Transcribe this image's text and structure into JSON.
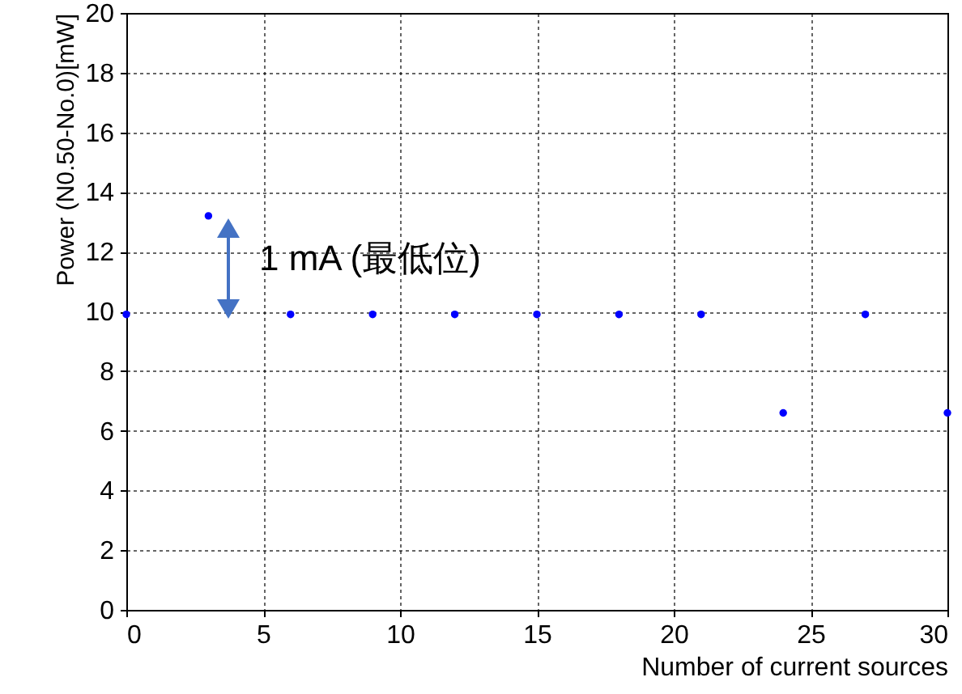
{
  "chart_data": {
    "type": "scatter",
    "xlabel": "Number of current sources",
    "ylabel": "Power (N0.50-No.0)[mW]",
    "x": [
      0,
      3,
      6,
      9,
      12,
      15,
      18,
      21,
      24,
      27,
      30
    ],
    "values": [
      9.9,
      13.2,
      9.9,
      9.9,
      9.9,
      9.9,
      9.9,
      9.9,
      6.6,
      9.9,
      6.6
    ],
    "color": "#0000ff",
    "marker": "circle",
    "grid": true,
    "xlim": [
      0,
      30
    ],
    "xticks": [
      0,
      5,
      10,
      15,
      20,
      25,
      30
    ],
    "ylim": [
      0,
      20
    ],
    "yticks": [
      0,
      2,
      4,
      6,
      8,
      10,
      12,
      14,
      16,
      18,
      20
    ],
    "annotations": [
      "1 mA (最低位)"
    ]
  }
}
